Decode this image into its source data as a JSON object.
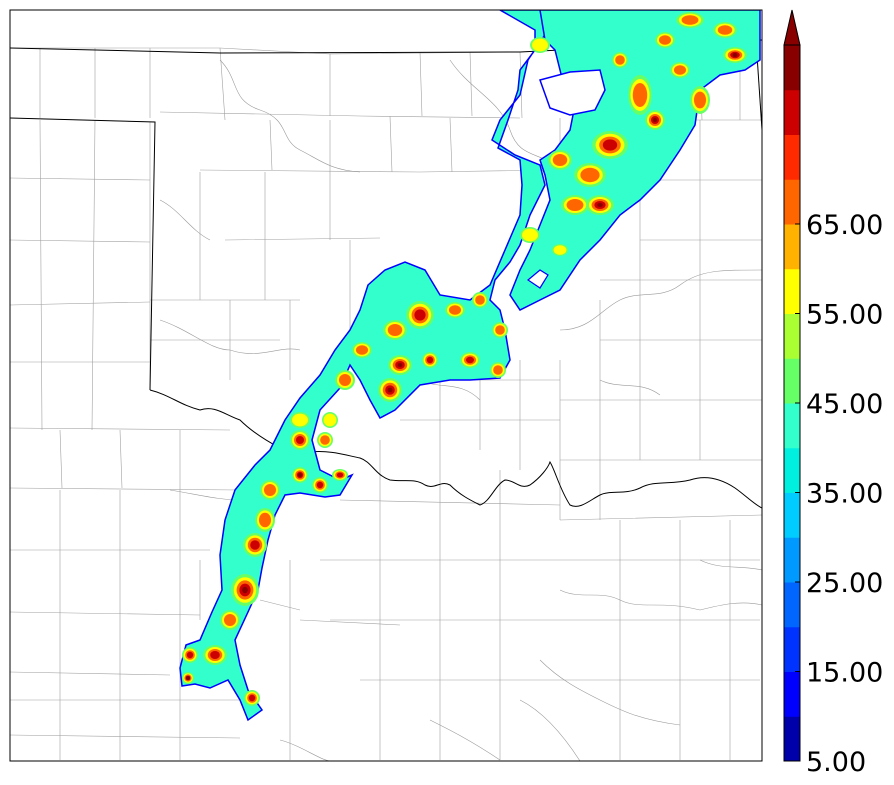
{
  "map": {
    "type": "radar-reflectivity",
    "colorbar": {
      "tick_labels": [
        "5.00",
        "15.00",
        "25.00",
        "35.00",
        "45.00",
        "55.00",
        "65.00"
      ],
      "colors": [
        "#0000aa",
        "#0000ff",
        "#0033ff",
        "#0066ff",
        "#0099ff",
        "#00ccff",
        "#00f0e0",
        "#33ffcc",
        "#66ff66",
        "#aaff33",
        "#ffff00",
        "#ffb300",
        "#ff6600",
        "#ff2a00",
        "#cc0000",
        "#880000"
      ],
      "extend": "max"
    },
    "colors": {
      "border": "#000000",
      "county_lines": "#9a9a9a",
      "echo_edge": "#0000ff",
      "echo_base": "#33ffcc"
    }
  }
}
